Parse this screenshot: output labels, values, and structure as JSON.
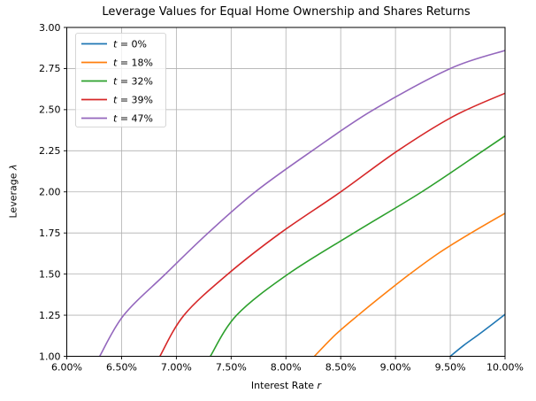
{
  "figure": {
    "background": "#ffffff",
    "text_color": "#000000",
    "spine_color": "#000000"
  },
  "chart_data": {
    "type": "line",
    "title": "Leverage Values for Equal Home Ownership and Shares Returns",
    "xlabel": "Interest Rate r",
    "xlabel_parts": [
      "Interest Rate ",
      "r"
    ],
    "ylabel": "Leverage λ",
    "ylabel_parts": [
      "Leverage ",
      "λ"
    ],
    "xlim": [
      6.0,
      10.0
    ],
    "ylim": [
      1.0,
      3.0
    ],
    "x_ticks": [
      6.0,
      6.5,
      7.0,
      7.5,
      8.0,
      8.5,
      9.0,
      9.5,
      10.0
    ],
    "x_tick_labels": [
      "6.00%",
      "6.50%",
      "7.00%",
      "7.50%",
      "8.00%",
      "8.50%",
      "9.00%",
      "9.50%",
      "10.00%"
    ],
    "y_ticks": [
      1.0,
      1.25,
      1.5,
      1.75,
      2.0,
      2.25,
      2.5,
      2.75,
      3.0
    ],
    "y_tick_labels": [
      "1.00",
      "1.25",
      "1.50",
      "1.75",
      "2.00",
      "2.25",
      "2.50",
      "2.75",
      "3.00"
    ],
    "grid": true,
    "grid_color": "#b0b0b0",
    "legend_position": "upper-left",
    "legend_border_color": "#cccccc",
    "series": [
      {
        "name": "t = 0%",
        "color": "#1f77b4",
        "points": [
          [
            9.5,
            1.0
          ],
          [
            9.62,
            1.065
          ],
          [
            9.75,
            1.128
          ],
          [
            9.88,
            1.193
          ],
          [
            10.0,
            1.255
          ]
        ]
      },
      {
        "name": "t = 18%",
        "color": "#ff7f0e",
        "points": [
          [
            8.26,
            1.0
          ],
          [
            8.45,
            1.13
          ],
          [
            8.66,
            1.25
          ],
          [
            8.9,
            1.38
          ],
          [
            9.13,
            1.5
          ],
          [
            9.4,
            1.63
          ],
          [
            9.69,
            1.75
          ],
          [
            10.0,
            1.87
          ]
        ]
      },
      {
        "name": "t = 32%",
        "color": "#2ca02c",
        "points": [
          [
            7.31,
            1.0
          ],
          [
            7.55,
            1.25
          ],
          [
            8.02,
            1.5
          ],
          [
            8.62,
            1.75
          ],
          [
            9.24,
            2.0
          ],
          [
            9.8,
            2.25
          ],
          [
            10.0,
            2.34
          ]
        ]
      },
      {
        "name": "t = 39%",
        "color": "#d62728",
        "points": [
          [
            6.85,
            1.0
          ],
          [
            7.07,
            1.25
          ],
          [
            7.47,
            1.5
          ],
          [
            7.95,
            1.75
          ],
          [
            8.5,
            2.0
          ],
          [
            9.02,
            2.25
          ],
          [
            9.53,
            2.46
          ],
          [
            10.0,
            2.6
          ]
        ]
      },
      {
        "name": "t = 47%",
        "color": "#9467bd",
        "points": [
          [
            6.3,
            1.0
          ],
          [
            6.52,
            1.25
          ],
          [
            6.9,
            1.5
          ],
          [
            7.29,
            1.75
          ],
          [
            7.72,
            2.0
          ],
          [
            8.24,
            2.25
          ],
          [
            8.8,
            2.5
          ],
          [
            9.5,
            2.75
          ],
          [
            10.0,
            2.86
          ]
        ]
      }
    ]
  }
}
